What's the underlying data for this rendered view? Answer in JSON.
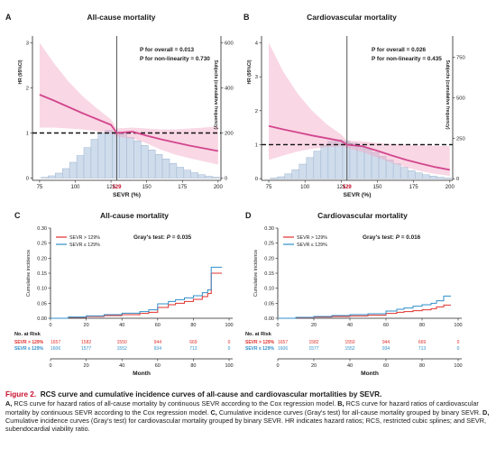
{
  "panels": [
    {
      "letter": "A",
      "title": "All-cause mortality",
      "stats": [
        "P for overall = 0.013",
        "P for non-linearity = 0.730"
      ],
      "xlabel": "SEVR (%)",
      "ylabel_left": "HR (95%CI)",
      "ylabel_right": "Subjects (cumulative frequency)",
      "cutoff_label": "129",
      "chart_data": {
        "type": "line",
        "x_ticks": [
          75,
          100,
          125,
          150,
          175,
          200
        ],
        "xlim": [
          70,
          202
        ],
        "y_ticks": [
          0,
          1,
          2,
          3
        ],
        "ylim": [
          -0.05,
          3.15
        ],
        "y2_ticks": [
          0,
          200,
          400,
          600
        ],
        "y2lim": [
          -10,
          630
        ],
        "reference_hr": 1,
        "cutoff": 129,
        "curve": {
          "x": [
            75,
            85,
            95,
            105,
            115,
            125,
            129,
            140,
            150,
            160,
            170,
            180,
            190,
            200
          ],
          "y": [
            1.85,
            1.72,
            1.58,
            1.44,
            1.31,
            1.18,
            1.0,
            1.03,
            0.94,
            0.86,
            0.79,
            0.72,
            0.66,
            0.6
          ]
        },
        "ci_upper": [
          3.0,
          2.55,
          2.15,
          1.82,
          1.55,
          1.3,
          1.1,
          1.12,
          1.1,
          1.08,
          1.08,
          1.1,
          1.12,
          1.15
        ],
        "ci_lower": [
          1.12,
          1.12,
          1.1,
          1.08,
          1.04,
          1.0,
          0.92,
          0.88,
          0.77,
          0.63,
          0.52,
          0.44,
          0.37,
          0.3
        ],
        "histogram": {
          "x": [
            78.5,
            83.5,
            88.5,
            93.5,
            98.5,
            103.5,
            108.5,
            113.5,
            118.5,
            123.5,
            128.5,
            133.5,
            138.5,
            143.5,
            148.5,
            153.5,
            158.5,
            163.5,
            168.5,
            173.5,
            178.5,
            183.5,
            188.5,
            193.5,
            198.5
          ],
          "counts": [
            3,
            10,
            22,
            42,
            70,
            100,
            135,
            172,
            200,
            212,
            205,
            195,
            180,
            165,
            145,
            125,
            105,
            85,
            65,
            48,
            35,
            24,
            15,
            8,
            4
          ]
        }
      }
    },
    {
      "letter": "B",
      "title": "Cardiovascular mortality",
      "stats": [
        "P for overall = 0.026",
        "P for non-linearity = 0.435"
      ],
      "xlabel": "SEVR (%)",
      "ylabel_left": "HR (95%CI)",
      "ylabel_right": "Subjects (cumulative frequency)",
      "cutoff_label": "129",
      "chart_data": {
        "type": "line",
        "x_ticks": [
          75,
          100,
          125,
          150,
          175,
          200
        ],
        "xlim": [
          70,
          202
        ],
        "y_ticks": [
          0,
          1,
          2,
          3,
          4
        ],
        "ylim": [
          -0.05,
          4.2
        ],
        "y2_ticks": [
          0,
          250,
          500,
          750
        ],
        "y2lim": [
          -10,
          880
        ],
        "reference_hr": 1,
        "cutoff": 129,
        "curve": {
          "x": [
            75,
            85,
            95,
            105,
            115,
            125,
            129,
            140,
            150,
            160,
            170,
            180,
            190,
            200
          ],
          "y": [
            1.55,
            1.45,
            1.36,
            1.27,
            1.19,
            1.11,
            1.0,
            0.95,
            0.82,
            0.68,
            0.55,
            0.44,
            0.34,
            0.26
          ]
        },
        "ci_upper": [
          4.0,
          3.15,
          2.5,
          2.0,
          1.6,
          1.3,
          1.12,
          1.1,
          1.05,
          1.02,
          1.0,
          0.98,
          0.97,
          0.96
        ],
        "ci_lower": [
          0.55,
          0.68,
          0.8,
          0.88,
          0.93,
          0.95,
          0.9,
          0.78,
          0.62,
          0.46,
          0.33,
          0.22,
          0.14,
          0.08
        ],
        "histogram": {
          "x": [
            78.5,
            83.5,
            88.5,
            93.5,
            98.5,
            103.5,
            108.5,
            113.5,
            118.5,
            123.5,
            128.5,
            133.5,
            138.5,
            143.5,
            148.5,
            153.5,
            158.5,
            163.5,
            168.5,
            173.5,
            178.5,
            183.5,
            188.5,
            193.5,
            198.5
          ],
          "counts": [
            4,
            12,
            30,
            55,
            90,
            130,
            170,
            205,
            230,
            240,
            232,
            220,
            205,
            185,
            162,
            138,
            115,
            92,
            70,
            50,
            36,
            25,
            16,
            9,
            4
          ]
        }
      }
    },
    {
      "letter": "C",
      "title": "All-cause mortality",
      "gray_label": "Gray's test: ",
      "gray_p": "P = 0.035",
      "legend": [
        "SEVR > 129%",
        "SEVR ≤ 129%"
      ],
      "ylabel": "Cumulative incidence",
      "xlabel": "Month",
      "risk_title": "No. at Risk",
      "chart_data": {
        "type": "line",
        "x_ticks": [
          0,
          20,
          40,
          60,
          80,
          100
        ],
        "xlim": [
          0,
          102
        ],
        "y_ticks": [
          "0.00",
          "0.05",
          "0.10",
          "0.15",
          "0.20",
          "0.25",
          "0.30"
        ],
        "ylim": [
          0,
          0.3
        ],
        "series": [
          {
            "name": "SEVR > 129%",
            "color": "#e0302c",
            "x": [
              0,
              10,
              20,
              30,
              40,
              50,
              55,
              60,
              66,
              70,
              75,
              80,
              85,
              88,
              90,
              96
            ],
            "y": [
              0,
              0.003,
              0.006,
              0.009,
              0.012,
              0.016,
              0.02,
              0.036,
              0.045,
              0.05,
              0.056,
              0.063,
              0.072,
              0.082,
              0.15,
              0.15
            ]
          },
          {
            "name": "SEVR ≤ 129%",
            "color": "#2f8fc9",
            "x": [
              0,
              10,
              20,
              30,
              40,
              50,
              55,
              60,
              66,
              70,
              75,
              80,
              85,
              88,
              90,
              96
            ],
            "y": [
              0,
              0.004,
              0.008,
              0.012,
              0.017,
              0.022,
              0.028,
              0.048,
              0.056,
              0.062,
              0.068,
              0.075,
              0.085,
              0.095,
              0.17,
              0.17
            ]
          }
        ],
        "risk_rows": [
          {
            "label": "SEVR > 129%",
            "color": "#e0302c",
            "values": [
              "1657",
              "1582",
              "1550",
              "944",
              "669",
              "0"
            ]
          },
          {
            "label": "SEVR ≤ 129%",
            "color": "#2f8fc9",
            "values": [
              "1606",
              "1577",
              "1552",
              "934",
              "713",
              "0"
            ]
          }
        ]
      }
    },
    {
      "letter": "D",
      "title": "Cardiovascular mortality",
      "gray_label": "Gray's test: ",
      "gray_p": "P = 0.016",
      "legend": [
        "SEVR > 129%",
        "SEVR ≤ 129%"
      ],
      "ylabel": "Cumulative incidence",
      "xlabel": "Month",
      "risk_title": "No. at Risk",
      "chart_data": {
        "type": "line",
        "x_ticks": [
          0,
          20,
          40,
          60,
          80,
          100
        ],
        "xlim": [
          0,
          102
        ],
        "y_ticks": [
          "0.00",
          "0.05",
          "0.10",
          "0.15",
          "0.20",
          "0.25",
          "0.30"
        ],
        "ylim": [
          0,
          0.3
        ],
        "series": [
          {
            "name": "SEVR > 129%",
            "color": "#e0302c",
            "x": [
              0,
              10,
              20,
              30,
              40,
              50,
              60,
              66,
              70,
              75,
              80,
              85,
              88,
              92,
              96
            ],
            "y": [
              0,
              0.002,
              0.004,
              0.006,
              0.008,
              0.01,
              0.016,
              0.02,
              0.022,
              0.025,
              0.028,
              0.032,
              0.038,
              0.044,
              0.044
            ]
          },
          {
            "name": "SEVR ≤ 129%",
            "color": "#2f8fc9",
            "x": [
              0,
              10,
              20,
              30,
              40,
              50,
              60,
              66,
              70,
              75,
              80,
              85,
              88,
              92,
              96
            ],
            "y": [
              0,
              0.003,
              0.006,
              0.009,
              0.012,
              0.015,
              0.024,
              0.03,
              0.034,
              0.04,
              0.045,
              0.05,
              0.058,
              0.074,
              0.074
            ]
          }
        ],
        "risk_rows": [
          {
            "label": "SEVR > 129%",
            "color": "#e0302c",
            "values": [
              "1657",
              "1582",
              "1550",
              "944",
              "669",
              "0"
            ]
          },
          {
            "label": "SEVR ≤ 129%",
            "color": "#2f8fc9",
            "values": [
              "1606",
              "1577",
              "1552",
              "934",
              "713",
              "0"
            ]
          }
        ]
      }
    }
  ],
  "caption": {
    "title_prefix": "Figure 2.",
    "title_text": "RCS curve and cumulative incidence curves of all-cause and cardiovascular mortalities by SEVR.",
    "body": "A, RCS curve for hazard ratios of all-cause mortality by continuous SEVR according to the Cox regression model. B, RCS curve for hazard ratios of cardiovascular mortality by continuous SEVR according to the Cox regression model. C, Cumulative incidence curves (Gray's test) for all-cause mortality grouped by binary SEVR. D, Cumulative incidence curves (Gray's test) for cardiovascular mortality grouped by binary SEVR. HR indicates hazard ratios; RCS, restricted cubic splines; and SEVR, subendocardial viability ratio."
  }
}
